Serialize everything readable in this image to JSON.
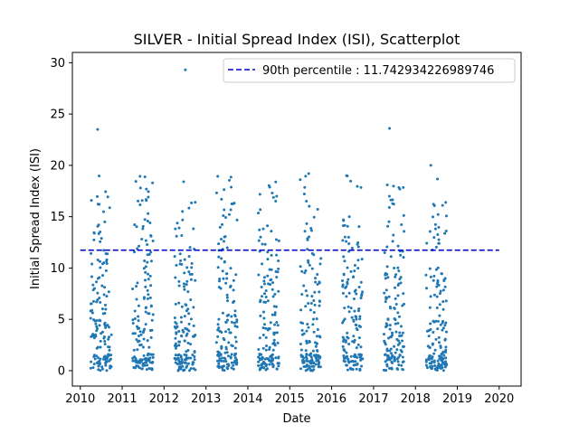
{
  "chart_data": {
    "type": "scatter",
    "title": "SILVER - Initial Spread Index (ISI), Scatterplot",
    "xlabel": "Date",
    "ylabel": "Initial Spread Index (ISI)",
    "x_ticks": [
      "2010",
      "2011",
      "2012",
      "2013",
      "2014",
      "2015",
      "2016",
      "2017",
      "2018",
      "2019",
      "2020"
    ],
    "y_ticks": [
      0,
      5,
      10,
      15,
      20,
      25,
      30
    ],
    "xlim": [
      "2009-10-24",
      "2020-07-10"
    ],
    "ylim": [
      -1.5,
      31
    ],
    "grid": false,
    "legend_position": "top-right",
    "point_color": "#1f77b4",
    "line_color": "#0000cc",
    "seasons": [
      {
        "year": 2010,
        "start": "2010-04-01",
        "end": "2010-09-30"
      },
      {
        "year": 2011,
        "start": "2011-04-01",
        "end": "2011-09-30"
      },
      {
        "year": 2012,
        "start": "2012-04-01",
        "end": "2012-09-30"
      },
      {
        "year": 2013,
        "start": "2013-04-01",
        "end": "2013-09-30"
      },
      {
        "year": 2014,
        "start": "2014-04-01",
        "end": "2014-09-30"
      },
      {
        "year": 2015,
        "start": "2015-04-01",
        "end": "2015-09-30"
      },
      {
        "year": 2016,
        "start": "2016-04-01",
        "end": "2016-09-30"
      },
      {
        "year": 2017,
        "start": "2017-04-01",
        "end": "2017-09-30"
      },
      {
        "year": 2018,
        "start": "2018-04-01",
        "end": "2018-09-30"
      }
    ],
    "notable_points": [
      {
        "x": "2010-06-01",
        "y": 23.5
      },
      {
        "x": "2012-07-05",
        "y": 29.3
      },
      {
        "x": "2017-05-20",
        "y": 23.6
      },
      {
        "x": "2018-05-15",
        "y": 20.0
      },
      {
        "x": "2015-06-15",
        "y": 19.2
      },
      {
        "x": "2016-05-10",
        "y": 19.0
      },
      {
        "x": "2012-06-20",
        "y": 18.4
      },
      {
        "x": "2011-06-10",
        "y": 17.8
      },
      {
        "x": "2014-08-01",
        "y": 17.3
      },
      {
        "x": "2013-06-01",
        "y": 15.1
      },
      {
        "x": "2010-06-15",
        "y": 16.2
      },
      {
        "x": "2011-09-01",
        "y": 14.4
      }
    ],
    "series": [
      {
        "name": "90th percentile : 11.742934226989746",
        "type": "hline",
        "value": 11.742934226989746,
        "x_range": [
          "2010-01-01",
          "2020-01-01"
        ]
      }
    ]
  }
}
